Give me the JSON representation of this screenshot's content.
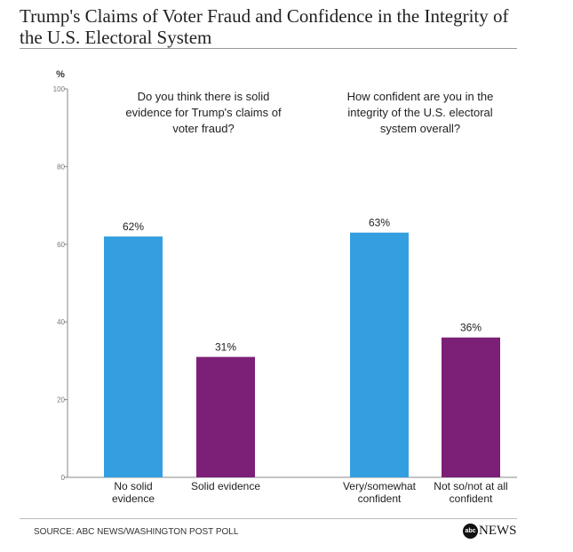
{
  "title": "Trump's Claims of Voter Fraud and Confidence in the Integrity of the U.S. Electoral System",
  "source": "SOURCE: ABC NEWS/WASHINGTON POST POLL",
  "logo": {
    "mark": "abc",
    "text": "NEWS"
  },
  "colors": {
    "blue": "#339fe0",
    "purple": "#7c1f76",
    "axis": "#888888",
    "text": "#222222"
  },
  "chart_data": {
    "type": "bar",
    "ylabel": "%",
    "ylim": [
      0,
      100
    ],
    "yticks": [
      0,
      20,
      40,
      60,
      80,
      100
    ],
    "grid": false,
    "groups": [
      {
        "question": [
          "Do you think there is solid",
          "evidence for Trump's claims of",
          "voter fraud?"
        ],
        "bars": [
          {
            "label": [
              "No solid",
              "evidence"
            ],
            "value": 62,
            "value_label": "62%",
            "color": "#339fe0"
          },
          {
            "label": [
              "Solid evidence"
            ],
            "value": 31,
            "value_label": "31%",
            "color": "#7c1f76"
          }
        ]
      },
      {
        "question": [
          "How confident are you in the",
          "integrity of the U.S. electoral",
          "system overall?"
        ],
        "bars": [
          {
            "label": [
              "Very/somewhat",
              "confident"
            ],
            "value": 63,
            "value_label": "63%",
            "color": "#339fe0"
          },
          {
            "label": [
              "Not so/not at all",
              "confident"
            ],
            "value": 36,
            "value_label": "36%",
            "color": "#7c1f76"
          }
        ]
      }
    ]
  }
}
